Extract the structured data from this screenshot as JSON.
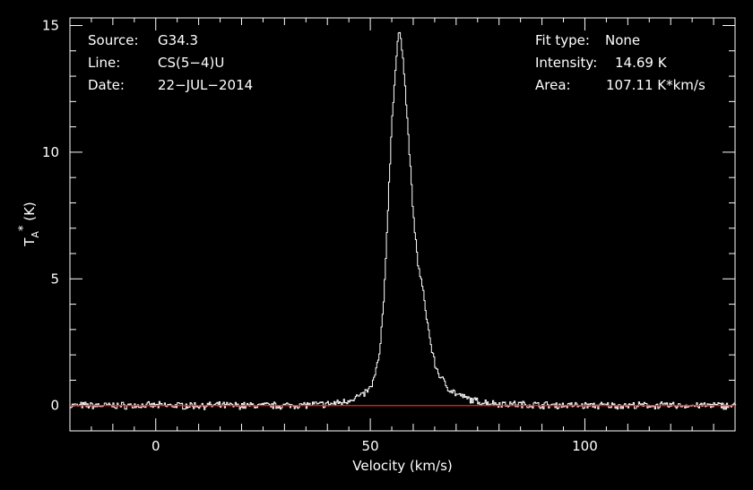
{
  "colors": {
    "background": "#000000",
    "foreground": "#ffffff",
    "baseline": "#ff2020"
  },
  "info_left": [
    {
      "key": "Source:",
      "value": "G34.3"
    },
    {
      "key": "Line:",
      "value": "CS(5−4)U"
    },
    {
      "key": "Date:",
      "value": "22−JUL−2014"
    }
  ],
  "info_right": [
    {
      "key": "Fit type:",
      "value": "None"
    },
    {
      "key": "Intensity:",
      "value": "14.69 K"
    },
    {
      "key": "Area:",
      "value": "107.11 K*km/s"
    }
  ],
  "chart_data": {
    "type": "line",
    "title": "",
    "xlabel": "Velocity (km/s)",
    "ylabel": "T_A* (K)",
    "xlim": [
      -20,
      135
    ],
    "ylim": [
      -1.0,
      15.3
    ],
    "xticks": [
      0,
      50,
      100
    ],
    "yticks": [
      0,
      5,
      10,
      15
    ],
    "grid": false,
    "series": [
      {
        "color": "#ffffff",
        "x": [
          -20,
          -10,
          0,
          10,
          20,
          30,
          40,
          44,
          46,
          48,
          50,
          51,
          52,
          53,
          54,
          55,
          56,
          56.5,
          57,
          57.5,
          58,
          59,
          60,
          61,
          62,
          63,
          64,
          65,
          66,
          68,
          70,
          72,
          75,
          80,
          90,
          100,
          110,
          120,
          135
        ],
        "y": [
          0,
          0,
          0,
          0,
          0,
          0,
          0.05,
          0.15,
          0.3,
          0.4,
          0.7,
          1.2,
          2.0,
          4.0,
          7.8,
          11.5,
          13.8,
          14.69,
          14.5,
          13.8,
          12.6,
          10.0,
          7.3,
          5.6,
          4.7,
          3.5,
          2.4,
          1.6,
          1.2,
          0.7,
          0.45,
          0.3,
          0.15,
          0.07,
          0.02,
          0,
          0,
          0,
          0
        ]
      },
      {
        "name": "baseline",
        "color": "#ff2020",
        "x": [
          -20,
          135
        ],
        "y": [
          0,
          0
        ]
      }
    ]
  }
}
